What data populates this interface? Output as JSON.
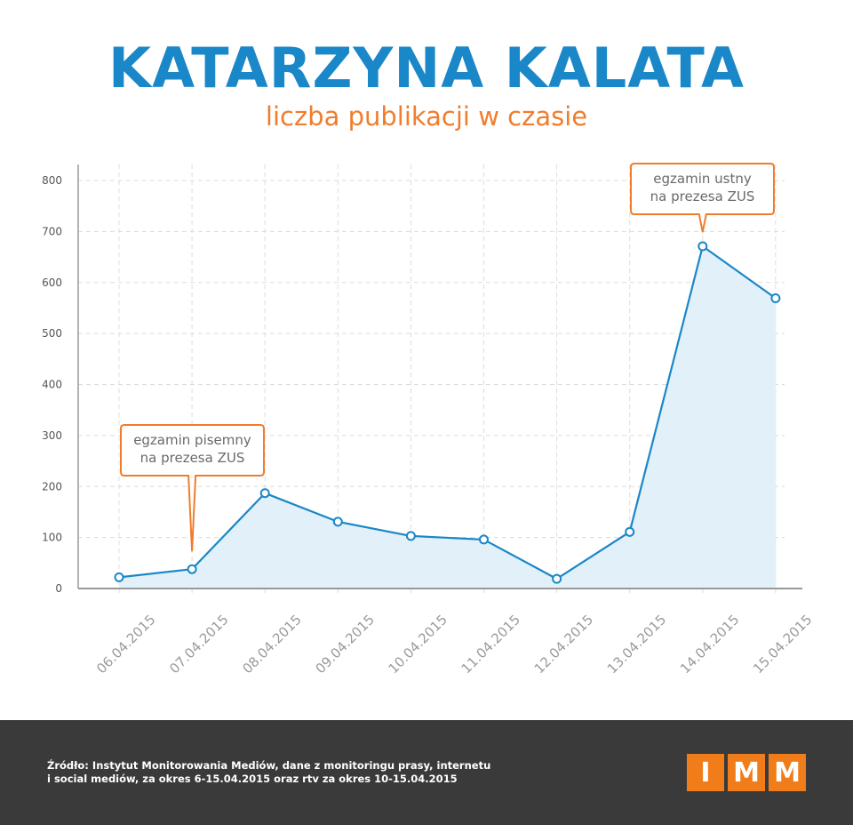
{
  "header": {
    "title": "KATARZYNA KALATA",
    "subtitle": "liczba publikacji w czasie"
  },
  "colors": {
    "title": "#1a87c8",
    "subtitle": "#f07d2d",
    "line": "#1a87c8",
    "area": "#e2f0f9",
    "annotation_border": "#f07d2d",
    "footer_bg": "#3a3a3a",
    "logo": "#f07d1a"
  },
  "chart_data": {
    "type": "area",
    "title": "liczba publikacji w czasie",
    "categories": [
      "06.04.2015",
      "07.04.2015",
      "08.04.2015",
      "09.04.2015",
      "10.04.2015",
      "11.04.2015",
      "12.04.2015",
      "13.04.2015",
      "14.04.2015",
      "15.04.2015"
    ],
    "series": [
      {
        "values": [
          22,
          38,
          187,
          131,
          103,
          96,
          19,
          111,
          671,
          569
        ]
      }
    ],
    "ylim": [
      0,
      800
    ],
    "y_ticks": [
      0,
      100,
      200,
      300,
      400,
      500,
      600,
      700,
      800
    ],
    "grid": true,
    "annotations": [
      {
        "lines": [
          "egzamin pisemny",
          "na prezesa ZUS"
        ],
        "category_index": 1
      },
      {
        "lines": [
          "egzamin ustny",
          "na prezesa ZUS"
        ],
        "category_index": 8
      }
    ]
  },
  "footer": {
    "source_line1": "Źródło: Instytut Monitorowania Mediów, dane z monitoringu prasy, internetu",
    "source_line2": "i social mediów, za okres 6-15.04.2015 oraz rtv za okres 10-15.04.2015",
    "logo_letters": [
      "I",
      "M",
      "M"
    ]
  }
}
